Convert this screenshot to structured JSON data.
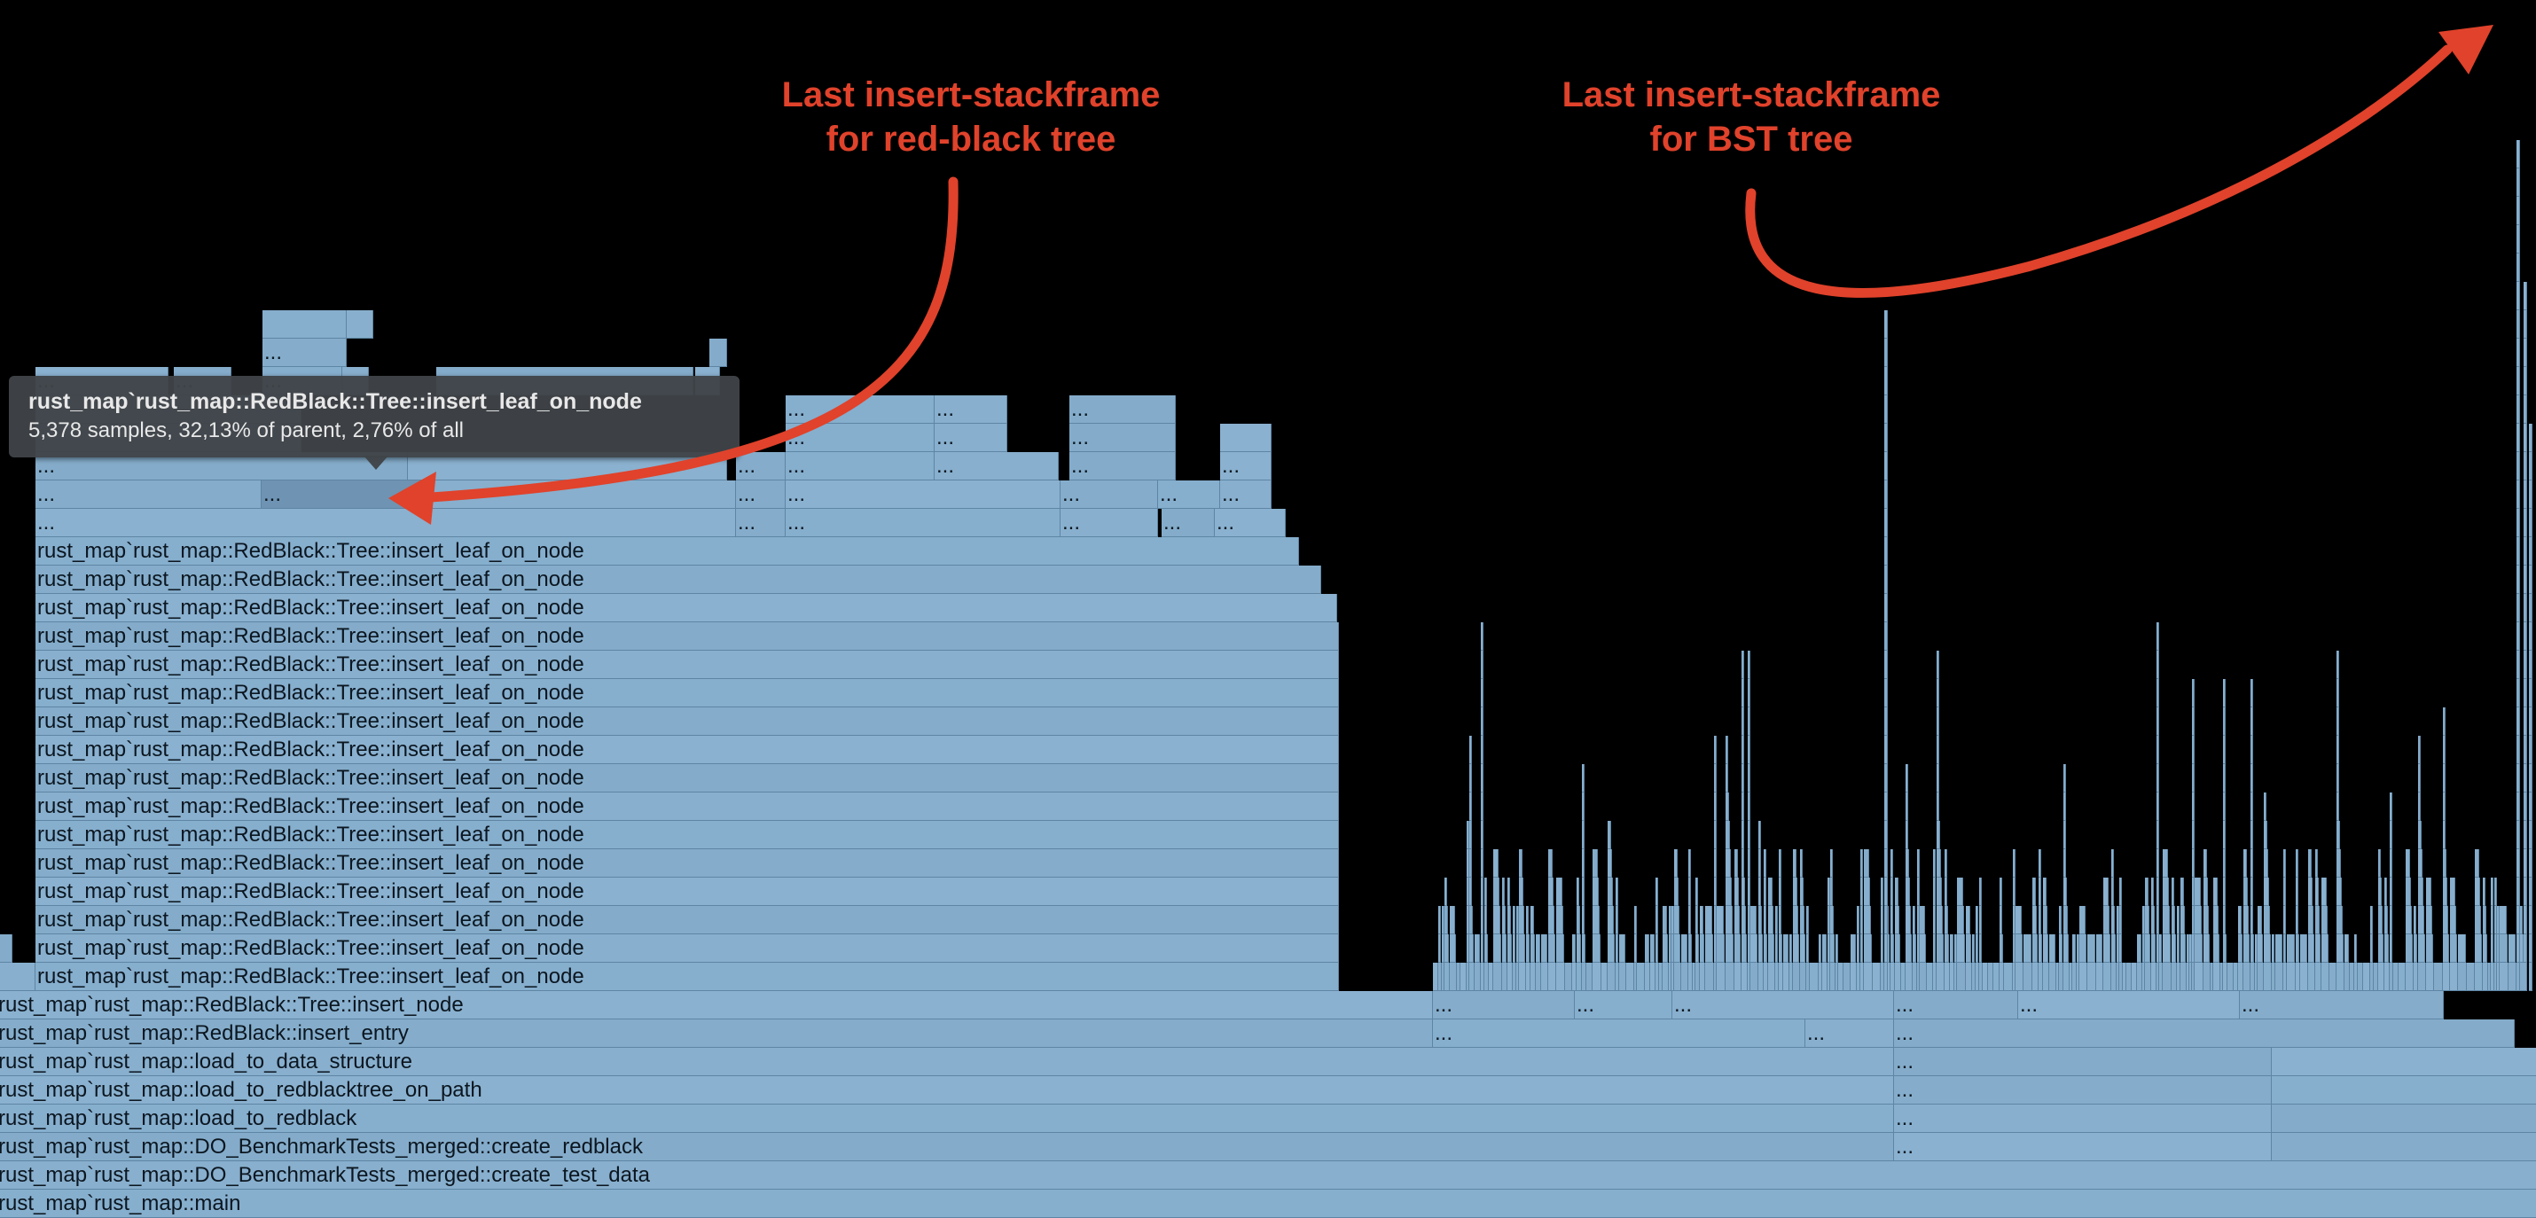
{
  "tooltip": {
    "title": "rust_map`rust_map::RedBlack::Tree::insert_leaf_on_node",
    "subtitle": "5,378 samples, 32,13% of parent, 2,76% of all"
  },
  "annotations": {
    "redblack_line1": "Last insert-stackframe",
    "redblack_line2": "for red-black tree",
    "bst_line1": "Last insert-stackframe",
    "bst_line2": "for BST tree"
  },
  "frame_labels": {
    "main": "rust_map`rust_map::main",
    "create_test_data": "rust_map`rust_map::DO_BenchmarkTests_merged::create_test_data",
    "create_redblack": "rust_map`rust_map::DO_BenchmarkTests_merged::create_redblack",
    "load_to_redblack": "rust_map`rust_map::load_to_redblack",
    "load_to_redblacktree_on_path": "rust_map`rust_map::load_to_redblacktree_on_path",
    "load_to_data_structure": "rust_map`rust_map::load_to_data_structure",
    "insert_entry": "rust_map`rust_map::RedBlack::insert_entry",
    "insert_node": "rust_map`rust_map::RedBlack::Tree::insert_node",
    "insert_leaf_on_node": "rust_map`rust_map::RedBlack::Tree::insert_leaf_on_node",
    "ellipsis": "..."
  },
  "colors": {
    "background": "#000000",
    "frame": "#86aecd",
    "frame_highlight": "#6f93b2",
    "annotation": "#e0422b",
    "tooltip_bg": "#404448"
  }
}
